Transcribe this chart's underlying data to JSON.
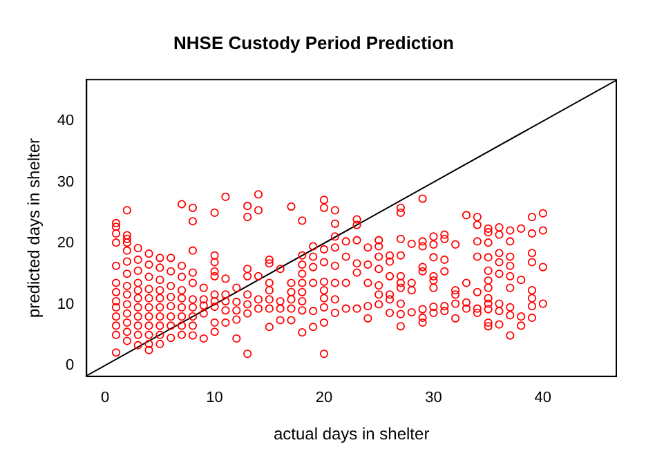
{
  "chart_data": {
    "type": "scatter",
    "title": "NHSE Custody Period Prediction",
    "xlabel": "actual days in shelter",
    "ylabel": "predicted days in shelter",
    "xlim": [
      -1.7,
      46.7
    ],
    "ylim": [
      -1.8,
      46.8
    ],
    "xticks": [
      0,
      10,
      20,
      30,
      40
    ],
    "yticks": [
      0,
      10,
      20,
      30,
      40
    ],
    "grid": false,
    "legend": false,
    "series": [
      {
        "color": "#ff0000",
        "marker": "circle",
        "x": [
          1,
          1,
          1,
          1,
          1,
          1,
          1,
          1,
          1,
          1,
          1,
          1,
          1,
          2,
          2,
          2,
          2,
          2,
          2,
          2,
          2,
          2,
          2,
          2,
          2,
          2,
          2,
          3,
          3,
          3,
          3,
          3,
          3,
          3,
          3,
          3,
          3,
          3,
          4,
          4,
          4,
          4,
          4,
          4,
          4,
          4,
          4,
          4,
          4,
          5,
          5,
          5,
          5,
          5,
          5,
          5,
          5,
          5,
          5,
          6,
          6,
          6,
          6,
          6,
          6,
          6,
          6,
          7,
          7,
          7,
          7,
          7,
          7,
          7,
          7,
          7,
          8,
          8,
          8,
          8,
          8,
          8,
          8,
          8,
          8,
          8,
          9,
          9,
          9,
          9,
          9,
          10,
          10,
          10,
          10,
          10,
          10,
          10,
          10,
          10,
          10,
          11,
          11,
          11,
          11,
          11,
          11,
          12,
          12,
          12,
          12,
          12,
          13,
          13,
          13,
          13,
          13,
          13,
          13,
          13,
          14,
          14,
          14,
          14,
          14,
          15,
          15,
          15,
          15,
          15,
          15,
          15,
          16,
          16,
          16,
          16,
          17,
          17,
          17,
          17,
          17,
          17,
          18,
          18,
          18,
          18,
          18,
          18,
          18,
          18,
          18,
          19,
          19,
          19,
          19,
          19,
          19,
          20,
          20,
          20,
          20,
          20,
          20,
          20,
          20,
          20,
          20,
          21,
          21,
          21,
          21,
          21,
          21,
          21,
          21,
          22,
          22,
          22,
          22,
          23,
          23,
          23,
          23,
          23,
          23,
          24,
          24,
          24,
          24,
          24,
          25,
          25,
          25,
          25,
          25,
          25,
          25,
          26,
          26,
          26,
          26,
          26,
          26,
          27,
          27,
          27,
          27,
          27,
          27,
          27,
          27,
          27,
          27,
          28,
          28,
          28,
          28,
          29,
          29,
          29,
          29,
          29,
          29,
          29,
          29,
          30,
          30,
          30,
          30,
          30,
          30,
          30,
          30,
          31,
          31,
          31,
          31,
          31,
          31,
          32,
          32,
          32,
          32,
          32,
          33,
          33,
          33,
          33,
          34,
          34,
          34,
          34,
          34,
          34,
          34,
          35,
          35,
          35,
          35,
          35,
          35,
          35,
          35,
          35,
          35,
          35,
          35,
          36,
          36,
          36,
          36,
          36,
          36,
          36,
          36,
          37,
          37,
          37,
          37,
          37,
          37,
          37,
          37,
          37,
          38,
          38,
          38,
          38,
          39,
          39,
          39,
          39,
          39,
          39,
          39,
          39,
          40,
          40,
          40,
          40
        ],
        "values": [
          23.3,
          22.7,
          21.6,
          20.1,
          16.3,
          13.5,
          12,
          10.5,
          9.5,
          8,
          6.5,
          5,
          2.1,
          25.4,
          21.3,
          20.7,
          20.1,
          18.8,
          17,
          15,
          13,
          11.6,
          10,
          8.5,
          7,
          5.5,
          4,
          19.2,
          17.3,
          15.5,
          13.5,
          12.3,
          11,
          9.5,
          8,
          6.5,
          5,
          3.3,
          18.3,
          16.5,
          14.5,
          12.5,
          11,
          9.5,
          8,
          6.5,
          5,
          3.5,
          2.5,
          17.6,
          16,
          14,
          12.3,
          11,
          9.5,
          8,
          6.5,
          5,
          3.5,
          17.6,
          15.4,
          13,
          11.2,
          9.7,
          8,
          6.5,
          4.5,
          26.4,
          16.3,
          14.5,
          12.3,
          11,
          9.5,
          8,
          6.5,
          5,
          25.8,
          23.6,
          18.8,
          15.2,
          13.5,
          10.8,
          9.5,
          8,
          6.5,
          4.9,
          12.7,
          10.8,
          9.8,
          8.5,
          4.4,
          25,
          18,
          16.9,
          15.4,
          14.6,
          11.6,
          10.5,
          9.6,
          7,
          5.5,
          27.6,
          14.2,
          11.6,
          10.5,
          9,
          7,
          12.7,
          10.4,
          9,
          7.5,
          4.4,
          26.1,
          24.3,
          15.8,
          14.6,
          11.6,
          10,
          8.5,
          1.9,
          28,
          25.4,
          14.6,
          10.8,
          9.3,
          17.3,
          16.7,
          13.5,
          12.3,
          10.8,
          9.3,
          6.3,
          15.8,
          10.5,
          9.3,
          7.4,
          26,
          13.5,
          12,
          10.8,
          9.3,
          7.4,
          23.7,
          18,
          16.5,
          15,
          13.5,
          12,
          10.5,
          9,
          5.4,
          19.5,
          17.8,
          16.1,
          13.5,
          8.9,
          6.3,
          27.1,
          25.8,
          19,
          16.9,
          13.7,
          12.3,
          11,
          9.5,
          7,
          1.9,
          25.4,
          23.2,
          21.1,
          19.3,
          16.3,
          13.5,
          10.8,
          8.6,
          20.3,
          17.8,
          13.5,
          9.3,
          23.9,
          23,
          20.5,
          16.7,
          15.2,
          9.3,
          19.3,
          16.5,
          13.5,
          9.7,
          7.7,
          20.5,
          19.5,
          17.8,
          15.8,
          13.1,
          11.6,
          10,
          18,
          17,
          14.6,
          11.6,
          10.8,
          8.6,
          25.8,
          25,
          20.7,
          18,
          14.6,
          13.5,
          12.7,
          10.1,
          8.4,
          6.4,
          19.9,
          13.5,
          12.3,
          8.7,
          27.3,
          20.3,
          19.5,
          16.1,
          15.4,
          9.2,
          7.8,
          7,
          21.1,
          19.8,
          17.7,
          14.6,
          13.9,
          12.7,
          9.6,
          8.6,
          21.4,
          20.7,
          17.3,
          15.4,
          9.7,
          8.9,
          19.8,
          12.3,
          11.6,
          10.1,
          7.7,
          24.6,
          13.5,
          10.3,
          9.3,
          24.3,
          23,
          20.3,
          17.8,
          12,
          9.3,
          8.6,
          22.4,
          21.8,
          20.1,
          17.7,
          15.5,
          13.9,
          12.7,
          11,
          10.1,
          9.2,
          7,
          6.4,
          22.6,
          21.4,
          18.4,
          16.9,
          15,
          10.1,
          8.9,
          6.7,
          22.1,
          20.3,
          17.8,
          16.3,
          14.6,
          12.7,
          9.5,
          8.2,
          4.9,
          22.4,
          14,
          8,
          6.5,
          24.3,
          21.6,
          18.4,
          16.9,
          12.3,
          11,
          9.7,
          7.8,
          24.9,
          22.1,
          16.1,
          10.1
        ]
      },
      {
        "type": "line",
        "color": "#000000",
        "marker": "none",
        "x": [
          -1.7,
          46.7
        ],
        "values": [
          -1.7,
          46.7
        ]
      }
    ]
  }
}
